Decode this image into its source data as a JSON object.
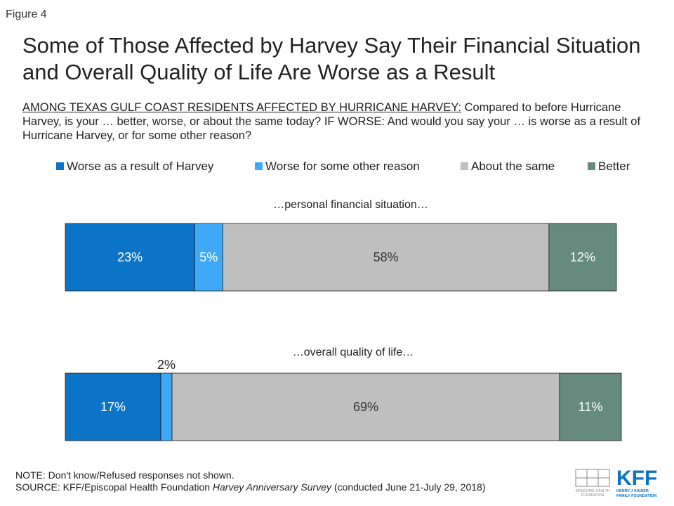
{
  "figure_label": "Figure 4",
  "title": "Some of Those Affected by Harvey Say Their Financial Situation and Overall Quality of Life Are Worse as a Result",
  "subtitle": {
    "lead": "AMONG TEXAS GULF COAST RESIDENTS AFFECTED BY HURRICANE HARVEY:",
    "text": " Compared to before Hurricane Harvey, is your … better, worse, or about the same today? IF WORSE: And would you say your … is worse as a result of Hurricane Harvey, or for some other reason?"
  },
  "legend": [
    {
      "label": "Worse as a result of Harvey",
      "color": "#0b74c7"
    },
    {
      "label": "Worse for some other reason",
      "color": "#3fa9f5"
    },
    {
      "label": "About the same",
      "color": "#bfbfbf"
    },
    {
      "label": "Better",
      "color": "#678a7e"
    }
  ],
  "chart_data": {
    "type": "bar",
    "orientation": "horizontal",
    "stacked": true,
    "categories": [
      "…personal financial situation…",
      "…overall quality of life…"
    ],
    "series": [
      {
        "name": "Worse as a result of Harvey",
        "values": [
          23,
          17
        ],
        "labels": [
          "23%",
          "17%"
        ]
      },
      {
        "name": "Worse for some other reason",
        "values": [
          5,
          2
        ],
        "labels": [
          "5%",
          "2%"
        ]
      },
      {
        "name": "About the same",
        "values": [
          58,
          69
        ],
        "labels": [
          "58%",
          "69%"
        ]
      },
      {
        "name": "Better",
        "values": [
          12,
          11
        ],
        "labels": [
          "12%",
          "11%"
        ]
      }
    ],
    "unit": "%",
    "legend_position": "top"
  },
  "footer": {
    "note": "NOTE: Don't know/Refused responses not shown.",
    "source_prefix": "SOURCE: KFF/Episcopal Health Foundation ",
    "source_title": "Harvey Anniversary Survey",
    "source_suffix": " (conducted June 21-July 29, 2018)"
  },
  "logos": {
    "ehf_line1": "EPISCOPAL HEALTH",
    "ehf_line2": "FOUNDATION",
    "kff_mark": "KFF",
    "kff_line1": "HENRY J KAISER",
    "kff_line2": "FAMILY FOUNDATION"
  }
}
